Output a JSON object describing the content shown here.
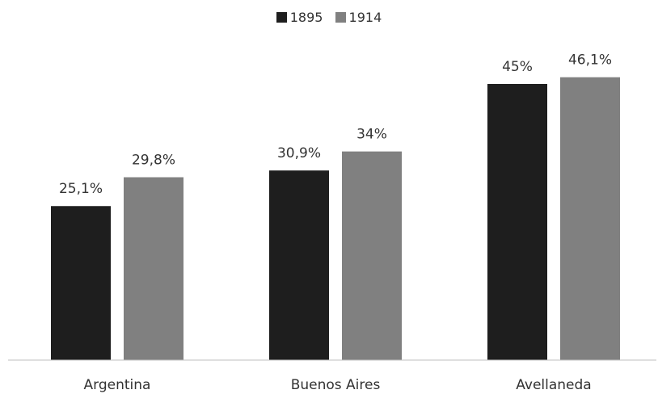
{
  "chart_data": {
    "type": "bar",
    "categories": [
      "Argentina",
      "Buenos Aires",
      "Avellaneda"
    ],
    "series": [
      {
        "name": "1895",
        "values": [
          25.1,
          30.9,
          45.0
        ],
        "labels": [
          "25,1%",
          "30,9%",
          "45%"
        ],
        "color": "#1e1e1e"
      },
      {
        "name": "1914",
        "values": [
          29.8,
          34.0,
          46.1
        ],
        "labels": [
          "29,8%",
          "34%",
          "46,1%"
        ],
        "color": "#808080"
      }
    ],
    "title": "",
    "xlabel": "",
    "ylabel": "",
    "ylim": [
      0,
      50
    ],
    "grid": false,
    "legend_position": "top-center"
  }
}
